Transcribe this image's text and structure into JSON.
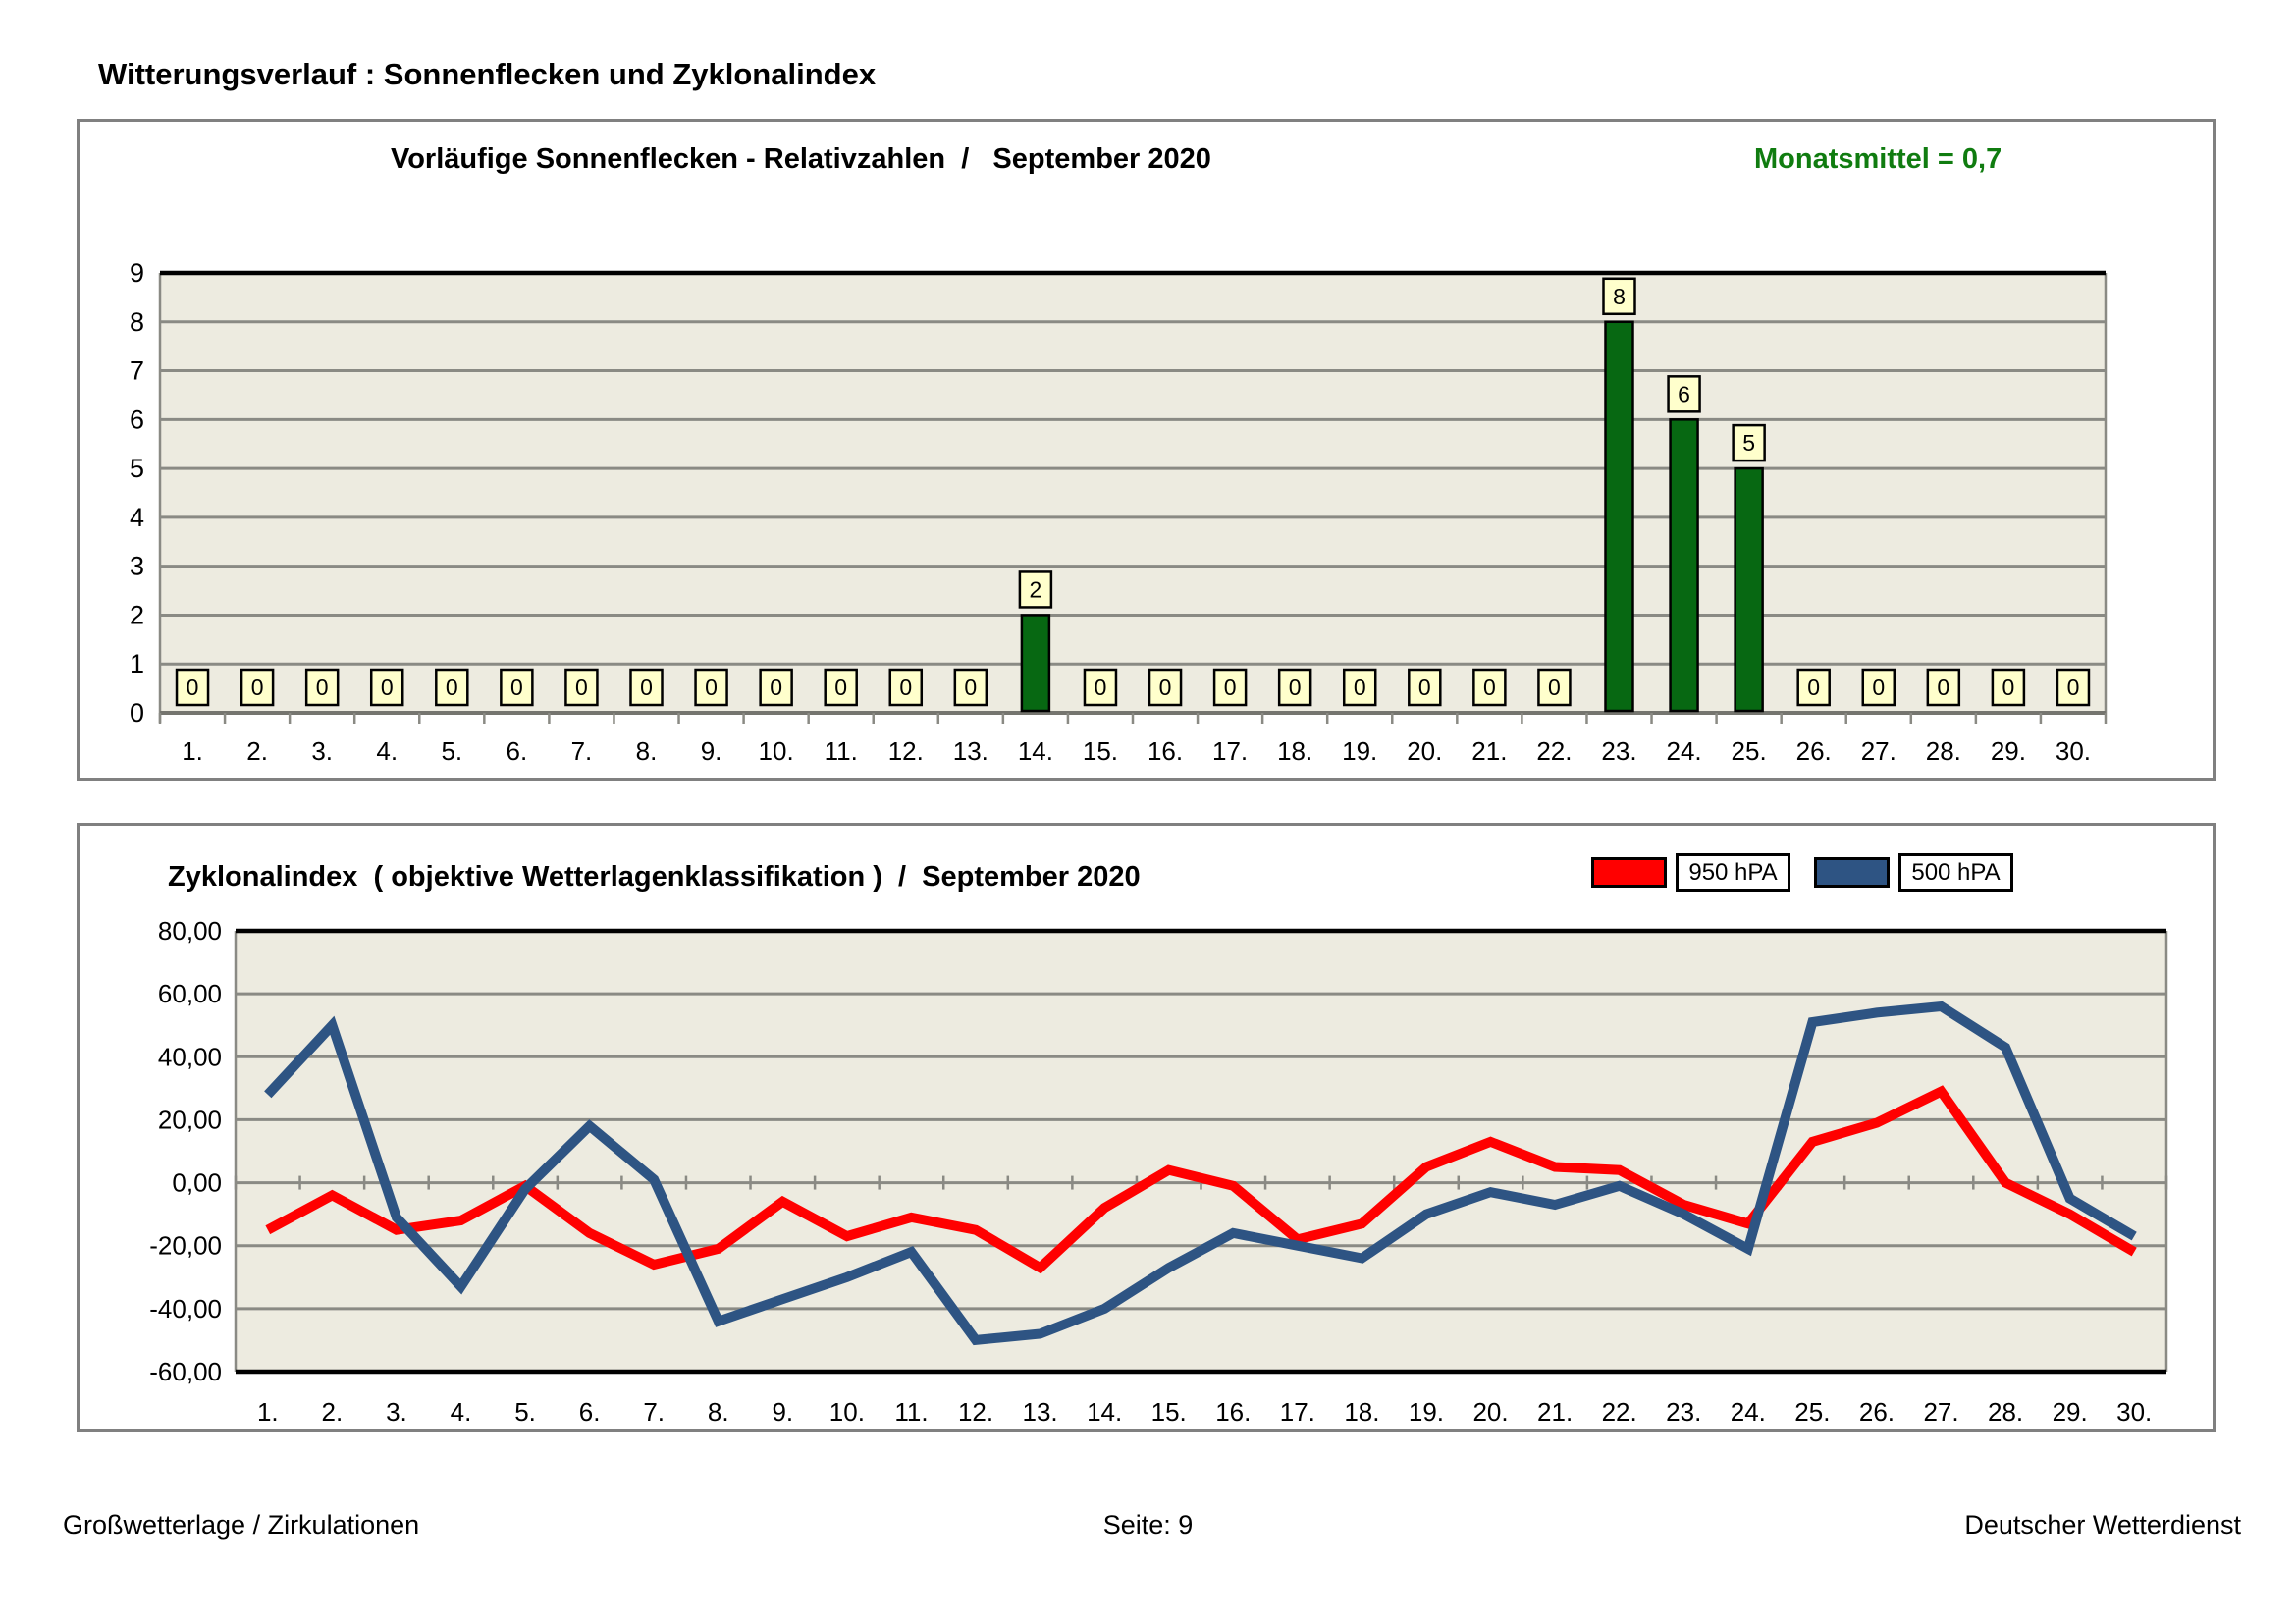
{
  "page": {
    "title": "Witterungsverlauf : Sonnenflecken und Zyklonalindex",
    "footer": {
      "left": "Großwetterlage / Zirkulationen",
      "center": "Seite: 9",
      "right": "Deutscher Wetterdienst"
    }
  },
  "colors": {
    "plot_bg": "#EDEBE0",
    "gridline": "#8A8A84",
    "plot_border_dark": "#000000",
    "baseline": "#75756F",
    "box_border": "#808080",
    "bar_green": "#076812",
    "value_box_bg": "#FFFFCC",
    "annotation_green": "#107C10",
    "series_red": "#FF0000",
    "series_blue": "#2E5483"
  },
  "chart_data": [
    {
      "type": "bar",
      "title": "Vorläufige Sonnenflecken - Relativzahlen  /   September 2020",
      "annotation": "Monatsmittel = 0,7",
      "categories": [
        "1.",
        "2.",
        "3.",
        "4.",
        "5.",
        "6.",
        "7.",
        "8.",
        "9.",
        "10.",
        "11.",
        "12.",
        "13.",
        "14.",
        "15.",
        "16.",
        "17.",
        "18.",
        "19.",
        "20.",
        "21.",
        "22.",
        "23.",
        "24.",
        "25.",
        "26.",
        "27.",
        "28.",
        "29.",
        "30."
      ],
      "values": [
        0,
        0,
        0,
        0,
        0,
        0,
        0,
        0,
        0,
        0,
        0,
        0,
        0,
        2,
        0,
        0,
        0,
        0,
        0,
        0,
        0,
        0,
        8,
        6,
        5,
        0,
        0,
        0,
        0,
        0
      ],
      "xlabel": "",
      "ylabel": "",
      "ylim": [
        0,
        9
      ],
      "yticks": [
        0,
        1,
        2,
        3,
        4,
        5,
        6,
        7,
        8,
        9
      ],
      "grid": true,
      "data_labels": true
    },
    {
      "type": "line",
      "title": "Zyklonalindex  ( objektive Wetterlagenklassifikation )  /  September 2020",
      "categories": [
        "1.",
        "2.",
        "3.",
        "4.",
        "5.",
        "6.",
        "7.",
        "8.",
        "9.",
        "10.",
        "11.",
        "12.",
        "13.",
        "14.",
        "15.",
        "16.",
        "17.",
        "18.",
        "19.",
        "20.",
        "21.",
        "22.",
        "23.",
        "24.",
        "25.",
        "26.",
        "27.",
        "28.",
        "29.",
        "30."
      ],
      "series": [
        {
          "name": "950 hPA",
          "color": "#FF0000",
          "values": [
            -15,
            -4,
            -15,
            -12,
            -1,
            -16,
            -26,
            -21,
            -6,
            -17,
            -11,
            -15,
            -27,
            -8,
            4,
            -1,
            -18,
            -13,
            5,
            13,
            5,
            4,
            -7,
            -13,
            13,
            19,
            29,
            0,
            -10,
            -22
          ]
        },
        {
          "name": "500 hPA",
          "color": "#2E5483",
          "values": [
            28,
            50,
            -11,
            -33,
            -2,
            18,
            1,
            -44,
            -37,
            -30,
            -22,
            -50,
            -48,
            -40,
            -27,
            -16,
            -20,
            -24,
            -10,
            -3,
            -7,
            -1,
            -10,
            -21,
            51,
            54,
            56,
            43,
            -5,
            -17
          ]
        }
      ],
      "xlabel": "",
      "ylabel": "",
      "ylim": [
        -60,
        80
      ],
      "ytick_step": 20,
      "ytick_labels": [
        "80,00",
        "60,00",
        "40,00",
        "20,00",
        "0,00",
        "-20,00",
        "-40,00",
        "-60,00"
      ],
      "legend_position": "top-right",
      "grid": true
    }
  ]
}
